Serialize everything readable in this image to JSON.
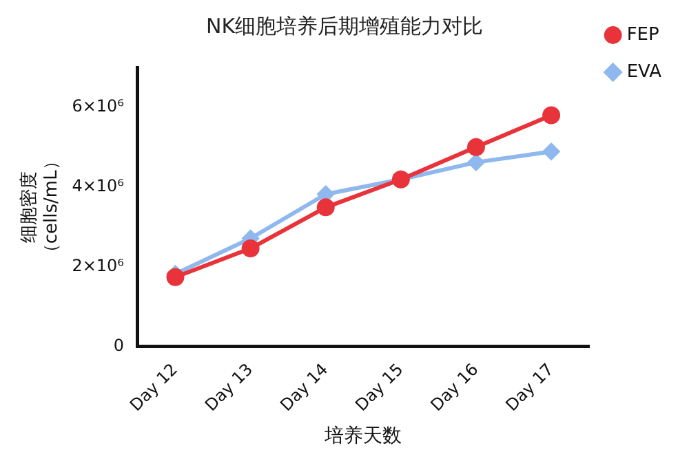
{
  "chart_data": {
    "type": "line",
    "title": "NK细胞培养后期增殖能力对比",
    "xlabel": "培养天数",
    "ylabel": "细胞密度（cells/mL）",
    "categories": [
      "Day 12",
      "Day 13",
      "Day 14",
      "Day 15",
      "Day 16",
      "Day 17"
    ],
    "series": [
      {
        "name": "FEP",
        "color": "#e8333a",
        "marker": "circle",
        "values": [
          1740000,
          2460000,
          3490000,
          4190000,
          5000000,
          5800000
        ]
      },
      {
        "name": "EVA",
        "color": "#8fb8ee",
        "marker": "diamond",
        "values": [
          1820000,
          2710000,
          3820000,
          4190000,
          4620000,
          4890000
        ]
      }
    ],
    "ylim": [
      0,
      7000000
    ],
    "yticks": [
      {
        "value": 0,
        "label": "0"
      },
      {
        "value": 2000000,
        "label": "2×10⁶"
      },
      {
        "value": 4000000,
        "label": "4×10⁶"
      },
      {
        "value": 6000000,
        "label": "6×10⁶"
      }
    ],
    "grid": false,
    "legend": "top right",
    "line_style": "solid"
  }
}
